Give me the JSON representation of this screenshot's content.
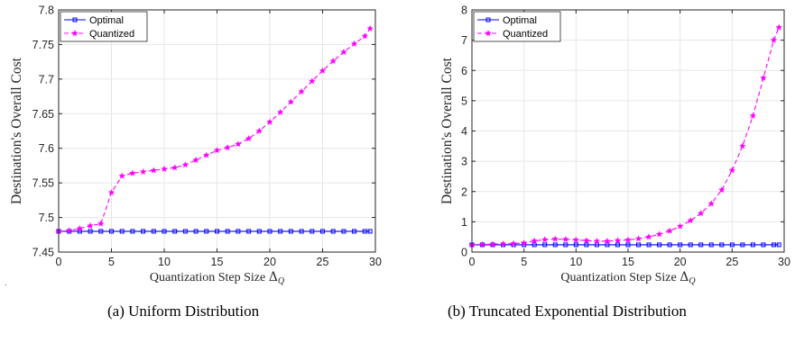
{
  "chart_data": [
    {
      "type": "line",
      "caption": "(a) Uniform Distribution",
      "xlabel": "Quantization Step Size",
      "xlabel_symbol": "Δ",
      "xlabel_sub": "Q",
      "ylabel": "Destination's Overall Cost",
      "xlim": [
        0,
        30
      ],
      "ylim": [
        7.45,
        7.8
      ],
      "xticks": [
        0,
        5,
        10,
        15,
        20,
        25,
        30
      ],
      "yticks": [
        7.45,
        7.5,
        7.55,
        7.6,
        7.65,
        7.7,
        7.75,
        7.8
      ],
      "ytick_labels": [
        "7.45",
        "7.5",
        "7.55",
        "7.6",
        "7.65",
        "7.7",
        "7.75",
        "7.8"
      ],
      "grid": true,
      "legend_position": "top-left",
      "series": [
        {
          "name": "Optimal",
          "color": "#0000ff",
          "marker": "square",
          "dash": "solid",
          "x": [
            0,
            1,
            2,
            3,
            4,
            5,
            6,
            7,
            8,
            9,
            10,
            11,
            12,
            13,
            14,
            15,
            16,
            17,
            18,
            19,
            20,
            21,
            22,
            23,
            24,
            25,
            26,
            27,
            28,
            29,
            29.5
          ],
          "y": [
            7.48,
            7.48,
            7.48,
            7.48,
            7.48,
            7.48,
            7.48,
            7.48,
            7.48,
            7.48,
            7.48,
            7.48,
            7.48,
            7.48,
            7.48,
            7.48,
            7.48,
            7.48,
            7.48,
            7.48,
            7.48,
            7.48,
            7.48,
            7.48,
            7.48,
            7.48,
            7.48,
            7.48,
            7.48,
            7.48,
            7.48
          ]
        },
        {
          "name": "Quantized",
          "color": "#ff00ff",
          "marker": "star",
          "dash": "dashed",
          "x": [
            0,
            1,
            2,
            3,
            4,
            5,
            6,
            7,
            8,
            9,
            10,
            11,
            12,
            13,
            14,
            15,
            16,
            17,
            18,
            19,
            20,
            21,
            22,
            23,
            24,
            25,
            26,
            27,
            28,
            29,
            29.5
          ],
          "y": [
            7.48,
            7.481,
            7.484,
            7.488,
            7.491,
            7.536,
            7.56,
            7.564,
            7.566,
            7.568,
            7.57,
            7.572,
            7.576,
            7.583,
            7.59,
            7.597,
            7.601,
            7.606,
            7.614,
            7.625,
            7.638,
            7.652,
            7.667,
            7.682,
            7.697,
            7.712,
            7.726,
            7.739,
            7.751,
            7.762,
            7.773
          ]
        }
      ]
    },
    {
      "type": "line",
      "caption": "(b) Truncated Exponential Distribution",
      "xlabel": "Quantization Step Size",
      "xlabel_symbol": "Δ",
      "xlabel_sub": "Q",
      "ylabel": "Destination's Overall Cost",
      "xlim": [
        0,
        30
      ],
      "ylim": [
        0,
        8
      ],
      "xticks": [
        0,
        5,
        10,
        15,
        20,
        25,
        30
      ],
      "yticks": [
        0,
        1,
        2,
        3,
        4,
        5,
        6,
        7,
        8
      ],
      "ytick_labels": [
        "0",
        "1",
        "2",
        "3",
        "4",
        "5",
        "6",
        "7",
        "8"
      ],
      "grid": true,
      "legend_position": "top-left",
      "series": [
        {
          "name": "Optimal",
          "color": "#0000ff",
          "marker": "square",
          "dash": "solid",
          "x": [
            0,
            1,
            2,
            3,
            4,
            5,
            6,
            7,
            8,
            9,
            10,
            11,
            12,
            13,
            14,
            15,
            16,
            17,
            18,
            19,
            20,
            21,
            22,
            23,
            24,
            25,
            26,
            27,
            28,
            29,
            29.5
          ],
          "y": [
            0.24,
            0.24,
            0.24,
            0.24,
            0.24,
            0.24,
            0.24,
            0.24,
            0.24,
            0.24,
            0.24,
            0.24,
            0.24,
            0.24,
            0.24,
            0.24,
            0.24,
            0.24,
            0.24,
            0.24,
            0.24,
            0.24,
            0.24,
            0.24,
            0.24,
            0.24,
            0.24,
            0.24,
            0.24,
            0.24,
            0.24
          ]
        },
        {
          "name": "Quantized",
          "color": "#ff00ff",
          "marker": "star",
          "dash": "dashed",
          "x": [
            0,
            1,
            2,
            3,
            4,
            5,
            6,
            7,
            8,
            9,
            10,
            11,
            12,
            13,
            14,
            15,
            16,
            17,
            18,
            19,
            20,
            21,
            22,
            23,
            24,
            25,
            26,
            27,
            28,
            29,
            29.5
          ],
          "y": [
            0.24,
            0.25,
            0.26,
            0.27,
            0.28,
            0.3,
            0.37,
            0.41,
            0.43,
            0.42,
            0.4,
            0.38,
            0.36,
            0.36,
            0.38,
            0.4,
            0.44,
            0.5,
            0.59,
            0.7,
            0.85,
            1.04,
            1.28,
            1.6,
            2.05,
            2.7,
            3.5,
            4.5,
            5.75,
            7.0,
            7.42
          ]
        }
      ]
    }
  ]
}
